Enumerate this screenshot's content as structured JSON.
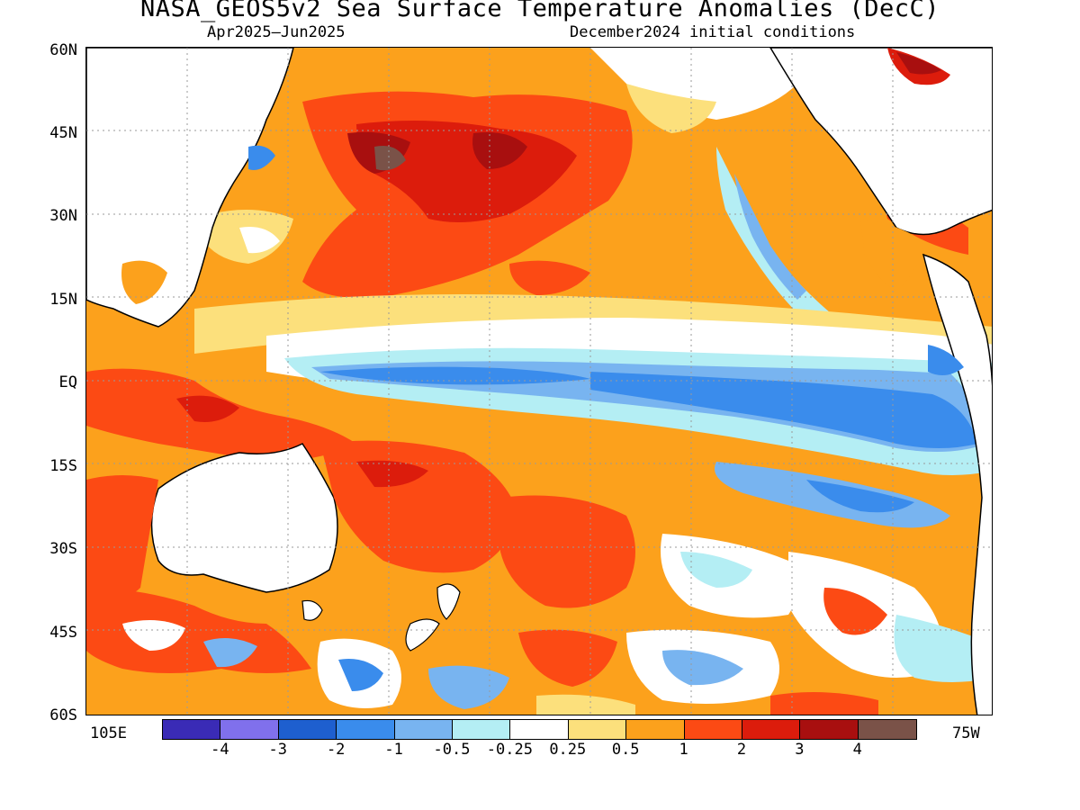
{
  "title": "NASA_GEOS5v2 Sea Surface Temperature Anomalies (DecC)",
  "subtitle_left": "Apr2025–Jun2025",
  "subtitle_right": "December2024 initial conditions",
  "lat_labels": [
    "60N",
    "45N",
    "30N",
    "15N",
    "EQ",
    "15S",
    "30S",
    "45S",
    "60S"
  ],
  "lon_left": "105E",
  "lon_right": "75W",
  "colorbar": {
    "colors": [
      "#3a2bb6",
      "#8070ec",
      "#1e5fcf",
      "#3a8cec",
      "#78b4f0",
      "#b4eef4",
      "#ffffff",
      "#fce07c",
      "#fca11c",
      "#fc4a14",
      "#dc1c0c",
      "#a80f0f",
      "#7a5248"
    ],
    "labels": [
      "-4",
      "-3",
      "-2",
      "-1",
      "-0.5",
      "-0.25",
      "0.25",
      "0.5",
      "1",
      "2",
      "3",
      "4"
    ]
  },
  "palette": {
    "deep_blue": "#1e5fcf",
    "blue": "#3a8cec",
    "light_blue": "#78b4f0",
    "pale_blue": "#b4eef4",
    "pale_yellow": "#fce07c",
    "orange": "#fca11c",
    "red_orange": "#fc4a14",
    "red": "#dc1c0c",
    "dark_red": "#a80f0f",
    "brown": "#7a5248",
    "land": "#ffffff"
  }
}
